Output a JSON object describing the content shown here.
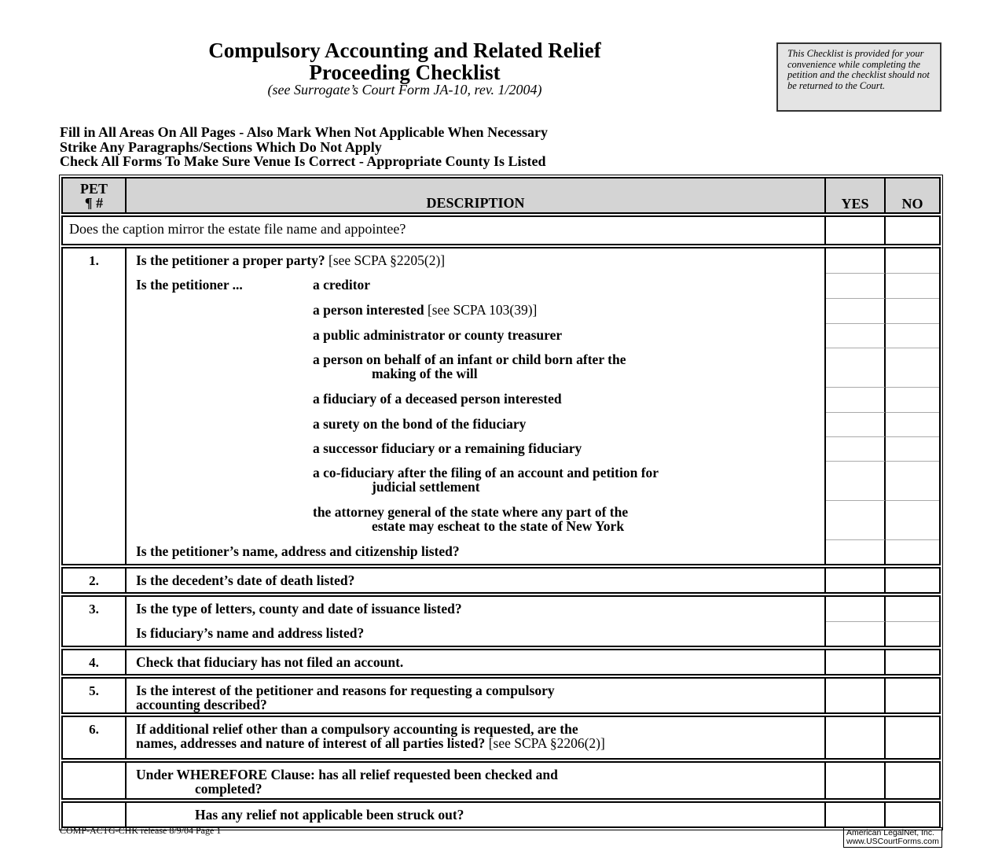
{
  "header": {
    "title_line1": "Compulsory Accounting and Related Relief",
    "title_line2": "Proceeding Checklist",
    "subtitle": "(see Surrogate’s Court Form JA-10, rev. 1/2004)",
    "note": "This Checklist is provided for your convenience while completing the petition and the checklist should not be returned to the Court."
  },
  "instructions": [
    "Fill in All Areas On All Pages - Also Mark When Not Applicable When Necessary",
    "Strike Any Paragraphs/Sections Which Do Not Apply",
    "Check All Forms To Make Sure Venue Is Correct - Appropriate County Is Listed"
  ],
  "table": {
    "columns": {
      "pet_line1": "PET",
      "pet_line2": "¶ #",
      "description": "DESCRIPTION",
      "yes": "YES",
      "no": "NO"
    },
    "groups": [
      {
        "rows": [
          {
            "h": 34,
            "plain": true,
            "lines": [
              [
                {
                  "t": "Does the caption mirror the estate file name and appointee?"
                }
              ]
            ]
          }
        ]
      },
      {
        "rows": [
          {
            "pet": "1.",
            "h": 31,
            "lines": [
              [
                {
                  "b": 1,
                  "t": "Is the petitioner a proper party?"
                },
                {
                  "t": " [see SCPA §2205(2)]"
                }
              ]
            ]
          },
          {
            "h": 32,
            "lead": "Is the petitioner ...",
            "lines": [
              [
                {
                  "b": 1,
                  "t": "a creditor"
                }
              ]
            ]
          },
          {
            "h": 32,
            "ind": 1,
            "lines": [
              [
                {
                  "b": 1,
                  "t": "a person interested"
                },
                {
                  "t": " [see SCPA 103(39)]"
                }
              ]
            ]
          },
          {
            "h": 31,
            "ind": 1,
            "lines": [
              [
                {
                  "b": 1,
                  "t": "a public administrator or county treasurer"
                }
              ]
            ]
          },
          {
            "h": 50,
            "ind": 1,
            "lines": [
              [
                {
                  "b": 1,
                  "t": "a person on behalf of an infant or child born after the"
                }
              ],
              [
                {
                  "b": 1,
                  "t": "making of the will"
                }
              ]
            ]
          },
          {
            "h": 32,
            "ind": 1,
            "lines": [
              [
                {
                  "b": 1,
                  "t": "a fiduciary of a deceased person interested"
                }
              ]
            ]
          },
          {
            "h": 31,
            "ind": 1,
            "lines": [
              [
                {
                  "b": 1,
                  "t": "a surety on the bond of the fiduciary"
                }
              ]
            ]
          },
          {
            "h": 31,
            "ind": 1,
            "lines": [
              [
                {
                  "b": 1,
                  "t": "a successor fiduciary or a remaining fiduciary"
                }
              ]
            ]
          },
          {
            "h": 50,
            "ind": 1,
            "lines": [
              [
                {
                  "b": 1,
                  "t": "a co-fiduciary after the filing of an account and petition for"
                }
              ],
              [
                {
                  "b": 1,
                  "t": "judicial settlement"
                }
              ]
            ]
          },
          {
            "h": 50,
            "ind": 1,
            "lines": [
              [
                {
                  "b": 1,
                  "t": "the attorney general of the state where any part of the"
                }
              ],
              [
                {
                  "b": 1,
                  "t": "estate may escheat to the state of New York"
                }
              ]
            ]
          },
          {
            "h": 31,
            "lines": [
              [
                {
                  "b": 1,
                  "t": "Is the petitioner’s name, address and citizenship listed?"
                }
              ]
            ]
          }
        ]
      },
      {
        "rows": [
          {
            "pet": "2.",
            "h": 30,
            "lines": [
              [
                {
                  "b": 1,
                  "t": "Is the decedent’s date of death listed?"
                }
              ]
            ]
          }
        ]
      },
      {
        "rows": [
          {
            "pet": "3.",
            "h": 31,
            "lines": [
              [
                {
                  "b": 1,
                  "t": "Is the type of letters, county and date of issuance listed?"
                }
              ]
            ]
          },
          {
            "h": 31,
            "lines": [
              [
                {
                  "b": 1,
                  "t": "Is fiduciary’s name and address listed?"
                }
              ]
            ]
          }
        ]
      },
      {
        "rows": [
          {
            "pet": "4.",
            "h": 30,
            "lines": [
              [
                {
                  "b": 1,
                  "t": "Check that fiduciary has not filed an account."
                }
              ]
            ]
          }
        ]
      },
      {
        "rows": [
          {
            "pet": "5.",
            "h": 43,
            "flat": 1,
            "lines": [
              [
                {
                  "b": 1,
                  "t": "Is the interest of the petitioner and reasons for requesting a compulsory"
                }
              ],
              [
                {
                  "b": 1,
                  "t": "accounting described?"
                }
              ]
            ]
          }
        ]
      },
      {
        "rows": [
          {
            "pet": "6.",
            "h": 52,
            "flat": 1,
            "lines": [
              [
                {
                  "b": 1,
                  "t": "If additional relief other than a compulsory accounting is requested, are the"
                }
              ],
              [
                {
                  "b": 1,
                  "t": "names, addresses and nature of interest of all parties listed?"
                },
                {
                  "t": " [see SCPA §2206(2)]"
                }
              ]
            ]
          }
        ]
      },
      {
        "rows": [
          {
            "h": 45,
            "lines": [
              [
                {
                  "b": 1,
                  "t": "Under WHEREFORE Clause: has all relief requested been checked and"
                }
              ],
              [
                {
                  "b": 1,
                  "t": "completed?"
                }
              ]
            ]
          }
        ]
      },
      {
        "rows": [
          {
            "h": 30,
            "ind2": 1,
            "lines": [
              [
                {
                  "b": 1,
                  "t": "Has any relief not applicable been struck out?"
                }
              ]
            ]
          }
        ]
      }
    ]
  },
  "footer": {
    "release": "COMP-ACTG-CHK release 8/9/04 Page 1",
    "brand_line1": "American LegalNet, Inc.",
    "brand_line2": "www.USCourtForms.com"
  }
}
